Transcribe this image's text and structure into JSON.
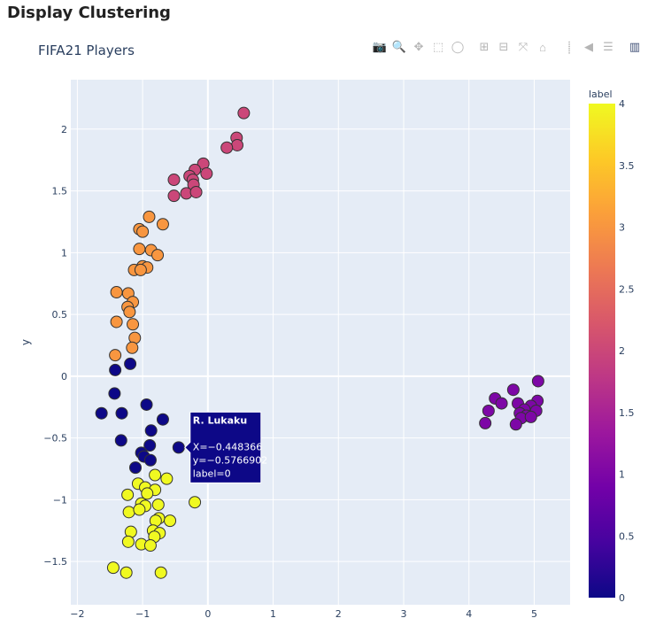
{
  "page": {
    "title": "Display Clustering"
  },
  "chart": {
    "title": "FIFA21 Players",
    "ylabel": "y",
    "colorbar_title": "label"
  },
  "modebar": [
    {
      "name": "camera-icon",
      "glyph": "📷"
    },
    {
      "name": "zoom-icon",
      "glyph": "🔍",
      "active": true
    },
    {
      "name": "pan-icon",
      "glyph": "✥"
    },
    {
      "name": "box-select-icon",
      "glyph": "⬚"
    },
    {
      "name": "lasso-select-icon",
      "glyph": "◯"
    },
    {
      "sep": true
    },
    {
      "name": "zoom-in-icon",
      "glyph": "⊞"
    },
    {
      "name": "zoom-out-icon",
      "glyph": "⊟"
    },
    {
      "name": "autoscale-icon",
      "glyph": "⤧"
    },
    {
      "name": "reset-axes-icon",
      "glyph": "⌂"
    },
    {
      "sep": true
    },
    {
      "name": "spike-lines-icon",
      "glyph": "⸽"
    },
    {
      "name": "hover-closest-icon",
      "glyph": "◀"
    },
    {
      "name": "hover-compare-icon",
      "glyph": "☰"
    },
    {
      "sep": true
    },
    {
      "name": "plotly-logo-icon",
      "glyph": "▥",
      "logo": true
    }
  ],
  "chart_data": {
    "type": "scatter",
    "xlim": [
      -2.1,
      5.55
    ],
    "ylim": [
      -1.85,
      2.4
    ],
    "xticks": [
      -2,
      -1,
      0,
      1,
      2,
      3,
      4,
      5
    ],
    "yticks": [
      -1.5,
      -1,
      -0.5,
      0,
      0.5,
      1,
      1.5,
      2
    ],
    "ytick_labels": [
      "−1.5",
      "−1",
      "−0.5",
      "0",
      "0.5",
      "1",
      "1.5",
      "2"
    ],
    "xtick_labels": [
      "−2",
      "−1",
      "0",
      "1",
      "2",
      "3",
      "4",
      "5"
    ],
    "colorscale": [
      "#0d0887",
      "#46039f",
      "#7201a8",
      "#9c179e",
      "#bd3786",
      "#d8576b",
      "#ed7953",
      "#fb9f3a",
      "#fdca26",
      "#f0f921"
    ],
    "colorbar": {
      "range": [
        0,
        4
      ],
      "ticks": [
        0,
        0.5,
        1,
        1.5,
        2,
        2.5,
        3,
        3.5,
        4
      ],
      "tick_labels": [
        "0",
        "0.5",
        "1",
        "1.5",
        "2",
        "2.5",
        "3",
        "3.5",
        "4"
      ]
    },
    "grid": true,
    "points": [
      {
        "x": 0.55,
        "y": 2.13,
        "label": 2
      },
      {
        "x": 0.44,
        "y": 1.93,
        "label": 2
      },
      {
        "x": 0.45,
        "y": 1.87,
        "label": 2
      },
      {
        "x": 0.29,
        "y": 1.85,
        "label": 2
      },
      {
        "x": -0.07,
        "y": 1.72,
        "label": 2
      },
      {
        "x": -0.2,
        "y": 1.67,
        "label": 2
      },
      {
        "x": -0.02,
        "y": 1.64,
        "label": 2
      },
      {
        "x": -0.28,
        "y": 1.62,
        "label": 2
      },
      {
        "x": -0.52,
        "y": 1.59,
        "label": 2
      },
      {
        "x": -0.23,
        "y": 1.59,
        "label": 2
      },
      {
        "x": -0.22,
        "y": 1.55,
        "label": 2
      },
      {
        "x": -0.33,
        "y": 1.48,
        "label": 2
      },
      {
        "x": -0.18,
        "y": 1.49,
        "label": 2
      },
      {
        "x": -0.52,
        "y": 1.46,
        "label": 2
      },
      {
        "x": -0.9,
        "y": 1.29,
        "label": 3
      },
      {
        "x": -0.69,
        "y": 1.23,
        "label": 3
      },
      {
        "x": -1.05,
        "y": 1.19,
        "label": 3
      },
      {
        "x": -1.0,
        "y": 1.17,
        "label": 3
      },
      {
        "x": -1.05,
        "y": 1.03,
        "label": 3
      },
      {
        "x": -0.87,
        "y": 1.02,
        "label": 3
      },
      {
        "x": -0.77,
        "y": 0.98,
        "label": 3
      },
      {
        "x": -1.0,
        "y": 0.89,
        "label": 3
      },
      {
        "x": -0.93,
        "y": 0.88,
        "label": 3
      },
      {
        "x": -1.13,
        "y": 0.86,
        "label": 3
      },
      {
        "x": -1.03,
        "y": 0.86,
        "label": 3
      },
      {
        "x": -1.4,
        "y": 0.68,
        "label": 3
      },
      {
        "x": -1.22,
        "y": 0.67,
        "label": 3
      },
      {
        "x": -1.15,
        "y": 0.6,
        "label": 3
      },
      {
        "x": -1.23,
        "y": 0.56,
        "label": 3
      },
      {
        "x": -1.2,
        "y": 0.52,
        "label": 3
      },
      {
        "x": -1.4,
        "y": 0.44,
        "label": 3
      },
      {
        "x": -1.15,
        "y": 0.42,
        "label": 3
      },
      {
        "x": -1.12,
        "y": 0.31,
        "label": 3
      },
      {
        "x": -1.16,
        "y": 0.23,
        "label": 3
      },
      {
        "x": -1.42,
        "y": 0.17,
        "label": 3
      },
      {
        "x": -1.42,
        "y": 0.05,
        "label": 0
      },
      {
        "x": -1.19,
        "y": 0.1,
        "label": 0
      },
      {
        "x": -0.94,
        "y": -0.23,
        "label": 0
      },
      {
        "x": -1.43,
        "y": -0.14,
        "label": 0
      },
      {
        "x": -1.63,
        "y": -0.3,
        "label": 0
      },
      {
        "x": -1.32,
        "y": -0.3,
        "label": 0
      },
      {
        "x": -0.69,
        "y": -0.35,
        "label": 0
      },
      {
        "x": -0.87,
        "y": -0.44,
        "label": 0
      },
      {
        "x": -1.33,
        "y": -0.52,
        "label": 0
      },
      {
        "x": -0.89,
        "y": -0.56,
        "label": 0
      },
      {
        "x": -0.448,
        "y": -0.577,
        "label": 0
      },
      {
        "x": -1.02,
        "y": -0.62,
        "label": 0
      },
      {
        "x": -0.98,
        "y": -0.65,
        "label": 0
      },
      {
        "x": -0.88,
        "y": -0.68,
        "label": 0
      },
      {
        "x": -1.11,
        "y": -0.74,
        "label": 0
      },
      {
        "x": -0.81,
        "y": -0.8,
        "label": 4
      },
      {
        "x": -0.63,
        "y": -0.83,
        "label": 4
      },
      {
        "x": -1.07,
        "y": -0.87,
        "label": 4
      },
      {
        "x": -0.96,
        "y": -0.9,
        "label": 4
      },
      {
        "x": -0.81,
        "y": -0.92,
        "label": 4
      },
      {
        "x": -1.23,
        "y": -0.96,
        "label": 4
      },
      {
        "x": -0.93,
        "y": -0.95,
        "label": 4
      },
      {
        "x": -1.02,
        "y": -1.03,
        "label": 4
      },
      {
        "x": -0.96,
        "y": -1.05,
        "label": 4
      },
      {
        "x": -0.76,
        "y": -1.04,
        "label": 4
      },
      {
        "x": -1.21,
        "y": -1.1,
        "label": 4
      },
      {
        "x": -1.05,
        "y": -1.08,
        "label": 4
      },
      {
        "x": -0.2,
        "y": -1.02,
        "label": 4
      },
      {
        "x": -0.75,
        "y": -1.15,
        "label": 4
      },
      {
        "x": -0.8,
        "y": -1.17,
        "label": 4
      },
      {
        "x": -0.58,
        "y": -1.17,
        "label": 4
      },
      {
        "x": -1.18,
        "y": -1.26,
        "label": 4
      },
      {
        "x": -0.84,
        "y": -1.25,
        "label": 4
      },
      {
        "x": -0.74,
        "y": -1.27,
        "label": 4
      },
      {
        "x": -0.82,
        "y": -1.3,
        "label": 4
      },
      {
        "x": -1.22,
        "y": -1.34,
        "label": 4
      },
      {
        "x": -1.02,
        "y": -1.36,
        "label": 4
      },
      {
        "x": -0.88,
        "y": -1.37,
        "label": 4
      },
      {
        "x": -1.45,
        "y": -1.55,
        "label": 4
      },
      {
        "x": -1.25,
        "y": -1.59,
        "label": 4
      },
      {
        "x": -0.72,
        "y": -1.59,
        "label": 4
      },
      {
        "x": 5.06,
        "y": -0.04,
        "label": 1
      },
      {
        "x": 4.68,
        "y": -0.11,
        "label": 1
      },
      {
        "x": 4.4,
        "y": -0.18,
        "label": 1
      },
      {
        "x": 4.5,
        "y": -0.22,
        "label": 1
      },
      {
        "x": 4.75,
        "y": -0.22,
        "label": 1
      },
      {
        "x": 5.05,
        "y": -0.2,
        "label": 1
      },
      {
        "x": 4.95,
        "y": -0.24,
        "label": 1
      },
      {
        "x": 4.85,
        "y": -0.27,
        "label": 1
      },
      {
        "x": 4.3,
        "y": -0.28,
        "label": 1
      },
      {
        "x": 5.03,
        "y": -0.28,
        "label": 1
      },
      {
        "x": 4.78,
        "y": -0.3,
        "label": 1
      },
      {
        "x": 4.88,
        "y": -0.32,
        "label": 1
      },
      {
        "x": 4.8,
        "y": -0.34,
        "label": 1
      },
      {
        "x": 4.95,
        "y": -0.33,
        "label": 1
      },
      {
        "x": 4.25,
        "y": -0.38,
        "label": 1
      },
      {
        "x": 4.72,
        "y": -0.39,
        "label": 1
      }
    ]
  },
  "tooltip": {
    "name": "R. Lukaku",
    "x_text": "X=−0.448366",
    "y_text": "y=−0.5766902",
    "label_text": "label=0",
    "anchor_x": -0.448,
    "anchor_y": -0.577
  }
}
